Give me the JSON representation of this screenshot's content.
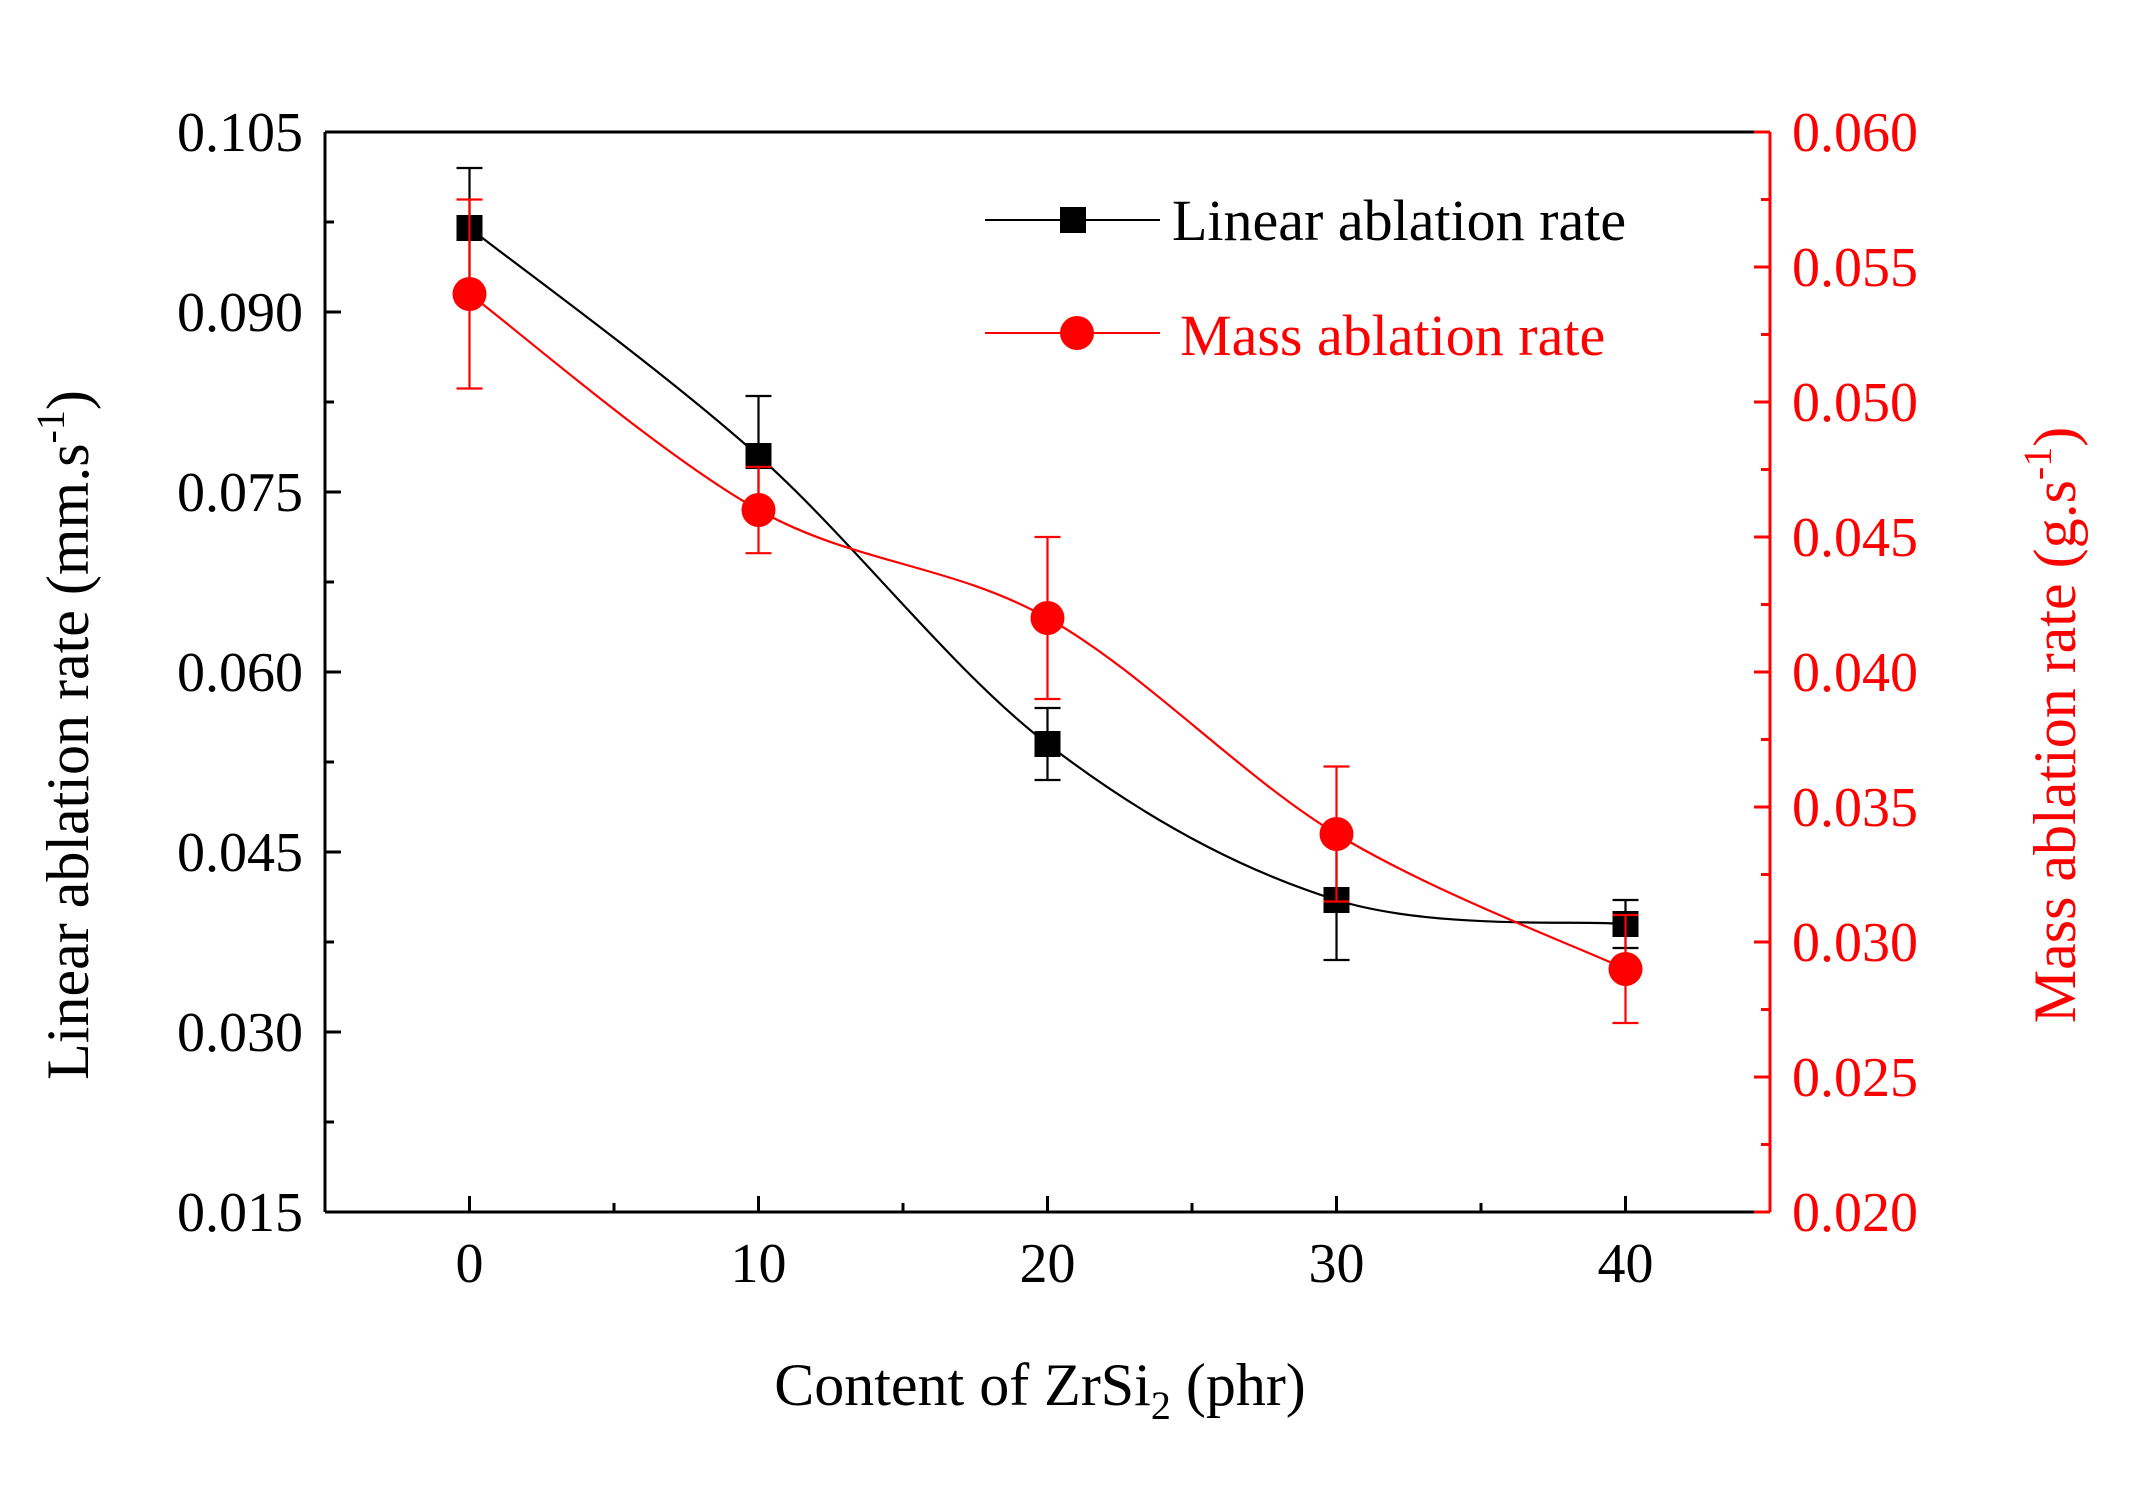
{
  "chart_data": {
    "type": "line",
    "title": "",
    "xlabel": "Content of ZrSi",
    "xlabel_subscript": "2",
    "xlabel_suffix": " (phr)",
    "ylabel_left": "Linear ablation rate (mm.s",
    "ylabel_left_superscript": "-1",
    "ylabel_left_suffix": ")",
    "ylabel_right": "Mass ablation rate (g.s",
    "ylabel_right_superscript": "-1",
    "ylabel_right_suffix": ")",
    "x": [
      0,
      10,
      20,
      30,
      40
    ],
    "xlim": [
      -5,
      45
    ],
    "x_ticks": [
      "0",
      "10",
      "20",
      "30",
      "40"
    ],
    "ylim_left": [
      0.015,
      0.105
    ],
    "y_left_ticks": [
      "0.015",
      "0.030",
      "0.045",
      "0.060",
      "0.075",
      "0.090",
      "0.105"
    ],
    "ylim_right": [
      0.02,
      0.06
    ],
    "y_right_ticks": [
      "0.020",
      "0.025",
      "0.030",
      "0.035",
      "0.040",
      "0.045",
      "0.050",
      "0.055",
      "0.060"
    ],
    "grid": false,
    "legend_position": "top-right",
    "series": [
      {
        "name": "Linear ablation rate",
        "axis": "left",
        "color": "#000000",
        "marker": "square",
        "values": [
          0.097,
          0.078,
          0.054,
          0.041,
          0.039
        ],
        "error": [
          0.005,
          0.005,
          0.003,
          0.005,
          0.002
        ]
      },
      {
        "name": "Mass ablation rate",
        "axis": "right",
        "color": "#ff0000",
        "marker": "circle",
        "values": [
          0.054,
          0.046,
          0.042,
          0.034,
          0.029
        ],
        "error": [
          0.0035,
          0.0016,
          0.003,
          0.0025,
          0.002
        ]
      }
    ]
  }
}
